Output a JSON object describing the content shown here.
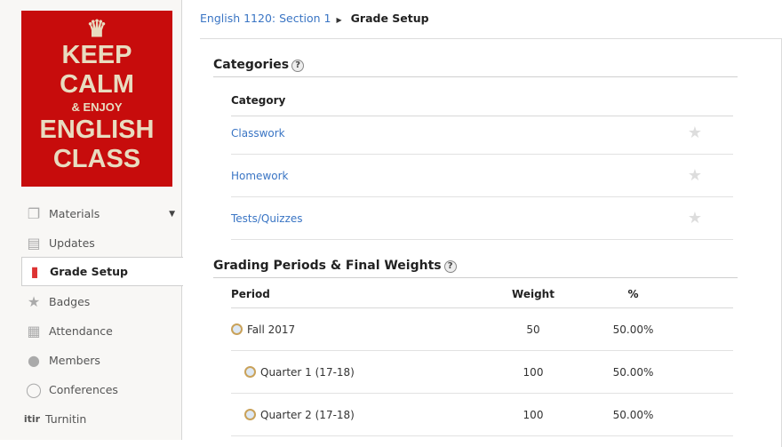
{
  "logo": {
    "lines": [
      "KEEP",
      "CALM",
      "& ENJOY",
      "ENGLISH",
      "CLASS"
    ]
  },
  "sidebar": {
    "items": [
      {
        "label": "Materials",
        "icon": "materials-icon"
      },
      {
        "label": "Updates",
        "icon": "updates-icon"
      },
      {
        "label": "Grade Setup",
        "icon": "grade-setup-icon",
        "active": true
      },
      {
        "label": "Badges",
        "icon": "badge-star-icon"
      },
      {
        "label": "Attendance",
        "icon": "attendance-icon"
      },
      {
        "label": "Members",
        "icon": "members-icon"
      },
      {
        "label": "Conferences",
        "icon": "conferences-icon"
      },
      {
        "label": "Turnitin",
        "icon": "turnitin-icon",
        "icon_text": "itir"
      }
    ]
  },
  "breadcrumb": {
    "course": "English 1120: Section 1",
    "current": "Grade Setup"
  },
  "categories": {
    "title": "Categories",
    "header": "Category",
    "items": [
      "Classwork",
      "Homework",
      "Tests/Quizzes"
    ]
  },
  "periods": {
    "title": "Grading Periods & Final Weights",
    "headers": {
      "period": "Period",
      "weight": "Weight",
      "percent": "%"
    },
    "rows": [
      {
        "name": "Fall 2017",
        "weight": "50",
        "percent": "50.00%"
      },
      {
        "name": "Quarter 1 (17-18)",
        "weight": "100",
        "percent": "50.00%"
      },
      {
        "name": "Quarter 2 (17-18)",
        "weight": "100",
        "percent": "50.00%"
      }
    ]
  },
  "colors": {
    "logo_bg": "#c70c0c",
    "link": "#3a75c4"
  }
}
